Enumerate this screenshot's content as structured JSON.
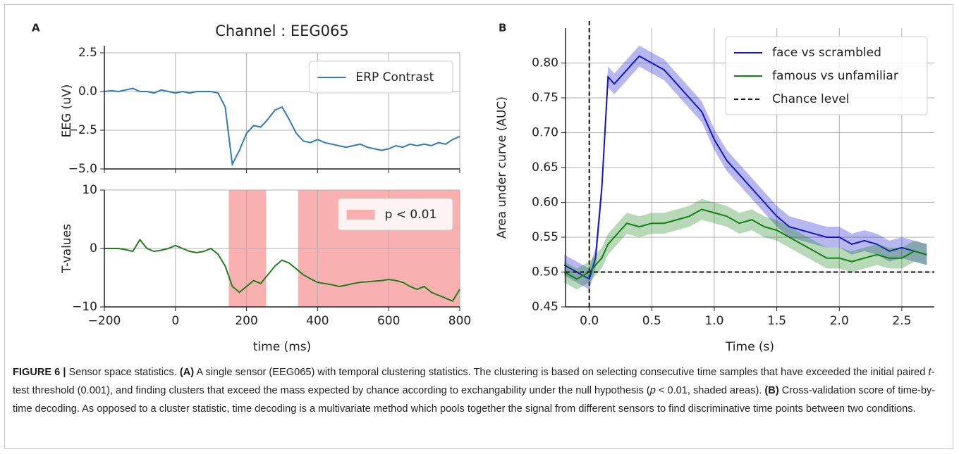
{
  "chart_data": [
    {
      "type": "line",
      "panel": "A",
      "title": "Channel : EEG065",
      "ylabel": "EEG (uV)",
      "x": [
        -200,
        -180,
        -160,
        -140,
        -120,
        -100,
        -80,
        -60,
        -40,
        -20,
        0,
        20,
        40,
        60,
        80,
        100,
        120,
        140,
        160,
        180,
        200,
        220,
        240,
        260,
        280,
        300,
        320,
        340,
        360,
        380,
        400,
        420,
        440,
        460,
        480,
        500,
        520,
        540,
        560,
        580,
        600,
        620,
        640,
        660,
        680,
        700,
        720,
        740,
        760,
        780,
        800
      ],
      "series": [
        {
          "name": "ERP Contrast",
          "color": "#2f7bb5",
          "values": [
            0,
            0.05,
            0,
            0.1,
            0.2,
            0,
            0,
            -0.1,
            0.1,
            0,
            -0.1,
            0,
            -0.1,
            0,
            0,
            0,
            -0.1,
            -1.0,
            -4.7,
            -3.8,
            -2.7,
            -2.2,
            -2.3,
            -1.8,
            -1.2,
            -1.0,
            -1.8,
            -2.7,
            -3.2,
            -3.3,
            -3.1,
            -3.3,
            -3.4,
            -3.5,
            -3.6,
            -3.5,
            -3.4,
            -3.6,
            -3.7,
            -3.8,
            -3.7,
            -3.5,
            -3.6,
            -3.4,
            -3.5,
            -3.4,
            -3.5,
            -3.3,
            -3.4,
            -3.1,
            -2.9
          ]
        }
      ],
      "xlim": [
        -200,
        800
      ],
      "xticks": [
        -200,
        0,
        200,
        400,
        600,
        800
      ],
      "xtick_labels": false,
      "ylim": [
        -5,
        2.5
      ],
      "yticks": [
        {
          "value": -5,
          "label": "−5.0"
        },
        {
          "value": -2.5,
          "label": "−2.5"
        },
        {
          "value": 0,
          "label": "0.0"
        },
        2.5
      ],
      "grid": true,
      "legend": "upper right"
    },
    {
      "type": "line",
      "ylabel": "T-values",
      "xlabel": "time (ms)",
      "x": [
        -200,
        -180,
        -160,
        -140,
        -120,
        -100,
        -80,
        -60,
        -40,
        -20,
        0,
        20,
        40,
        60,
        80,
        100,
        120,
        140,
        160,
        180,
        200,
        220,
        240,
        260,
        280,
        300,
        320,
        340,
        360,
        380,
        400,
        420,
        440,
        460,
        480,
        500,
        520,
        540,
        560,
        580,
        600,
        620,
        640,
        660,
        680,
        700,
        720,
        740,
        760,
        780,
        800
      ],
      "series": [
        {
          "name": "T-values",
          "color": "#1f7f1f",
          "values": [
            0,
            0,
            0,
            -0.2,
            -0.5,
            1.5,
            0,
            -0.5,
            -0.3,
            0,
            0.5,
            0,
            -0.5,
            -0.7,
            -0.5,
            0,
            -1,
            -3,
            -6.5,
            -7.5,
            -6.5,
            -5.5,
            -6,
            -4.5,
            -3,
            -2,
            -2.5,
            -3.5,
            -4.5,
            -5.2,
            -5.8,
            -6,
            -6.2,
            -6.5,
            -6.3,
            -6,
            -5.8,
            -5.7,
            -5.6,
            -5.5,
            -5.3,
            -5.5,
            -5.8,
            -6.5,
            -7,
            -6.5,
            -7.5,
            -8,
            -8.5,
            -9,
            -7
          ]
        }
      ],
      "spans": [
        [
          150,
          255
        ],
        [
          345,
          800
        ]
      ],
      "span_color": "#f8b0b0",
      "span_label": "p < 0.01",
      "xlim": [
        -200,
        800
      ],
      "xticks": [
        {
          "value": -200,
          "label": "−200"
        },
        0,
        200,
        400,
        600,
        800
      ],
      "ylim": [
        -10,
        10
      ],
      "yticks": [
        {
          "value": -10,
          "label": "−10"
        },
        0,
        10
      ],
      "grid": true,
      "legend": "upper right"
    },
    {
      "type": "line",
      "panel": "B",
      "ylabel": "Area under curve (AUC)",
      "xlabel": "Time (s)",
      "x": [
        -0.2,
        -0.1,
        0,
        0.05,
        0.1,
        0.15,
        0.2,
        0.3,
        0.4,
        0.5,
        0.6,
        0.7,
        0.8,
        0.9,
        1.0,
        1.1,
        1.2,
        1.3,
        1.4,
        1.5,
        1.6,
        1.7,
        1.8,
        1.9,
        2.0,
        2.1,
        2.2,
        2.3,
        2.4,
        2.5,
        2.6,
        2.7
      ],
      "series": [
        {
          "name": "face vs scrambled",
          "color": "#1515cc",
          "values": [
            0.51,
            0.5,
            0.49,
            0.52,
            0.62,
            0.78,
            0.77,
            0.79,
            0.81,
            0.8,
            0.79,
            0.77,
            0.75,
            0.73,
            0.69,
            0.66,
            0.64,
            0.62,
            0.6,
            0.58,
            0.565,
            0.56,
            0.555,
            0.55,
            0.55,
            0.54,
            0.545,
            0.54,
            0.53,
            0.535,
            0.53,
            0.525
          ],
          "errors": [
            0.015,
            0.015,
            0.015,
            0.015,
            0.015,
            0.015,
            0.015,
            0.015,
            0.015,
            0.015,
            0.015,
            0.015,
            0.015,
            0.015,
            0.015,
            0.015,
            0.015,
            0.015,
            0.015,
            0.015,
            0.015,
            0.015,
            0.015,
            0.015,
            0.015,
            0.015,
            0.015,
            0.015,
            0.015,
            0.015,
            0.015,
            0.015
          ]
        },
        {
          "name": "famous vs unfamiliar",
          "color": "#138013",
          "values": [
            0.5,
            0.49,
            0.5,
            0.51,
            0.52,
            0.54,
            0.55,
            0.57,
            0.565,
            0.57,
            0.57,
            0.575,
            0.58,
            0.59,
            0.585,
            0.58,
            0.57,
            0.575,
            0.565,
            0.56,
            0.55,
            0.54,
            0.53,
            0.52,
            0.52,
            0.515,
            0.52,
            0.525,
            0.52,
            0.52,
            0.53,
            0.525
          ],
          "errors": [
            0.015,
            0.015,
            0.015,
            0.015,
            0.015,
            0.015,
            0.015,
            0.015,
            0.015,
            0.015,
            0.015,
            0.015,
            0.015,
            0.015,
            0.015,
            0.015,
            0.015,
            0.015,
            0.015,
            0.015,
            0.015,
            0.015,
            0.015,
            0.015,
            0.015,
            0.015,
            0.015,
            0.015,
            0.015,
            0.015,
            0.015,
            0.015
          ]
        }
      ],
      "hlines": [
        {
          "name": "Chance level",
          "value": 0.5
        }
      ],
      "vlines": [
        0
      ],
      "xlim": [
        -0.19,
        2.76
      ],
      "xticks": [
        {
          "value": 0,
          "label": "0.0"
        },
        0.5,
        {
          "value": 1,
          "label": "1.0"
        },
        1.5,
        {
          "value": 2,
          "label": "2.0"
        },
        2.5
      ],
      "ylim": [
        0.45,
        0.85
      ],
      "yticks": [
        0.45,
        {
          "value": 0.5,
          "label": "0.50"
        },
        0.55,
        {
          "value": 0.6,
          "label": "0.60"
        },
        0.65,
        {
          "value": 0.7,
          "label": "0.70"
        },
        0.75,
        {
          "value": 0.8,
          "label": "0.80"
        }
      ],
      "grid": true,
      "legend": "upper right"
    }
  ],
  "caption": [
    "FIGURE 6 |",
    " Sensor space statistics. ",
    "(A)",
    " A single sensor (EEG065) with temporal clustering statistics. The clustering is based on selecting consecutive time samples that have exceeded the initial paired ",
    "t",
    "-test threshold (0.001), and finding clusters that exceed the mass expected by chance according to exchangability under the null hypothesis (",
    "p",
    " < 0.01, shaded areas). ",
    "(B)",
    " Cross-validation score of time-by-time decoding. As opposed to a cluster statistic, time decoding is a multivariate method which pools together the signal from different sensors to find discriminative time points between two conditions."
  ]
}
